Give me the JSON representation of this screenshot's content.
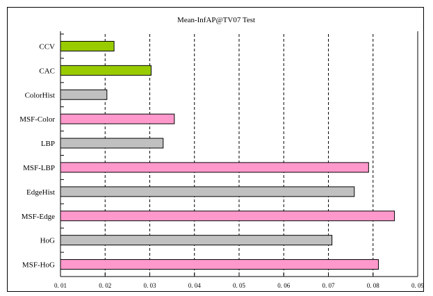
{
  "chart_data": {
    "type": "bar",
    "orientation": "horizontal",
    "title": "Mean-InfAP@TV07 Test",
    "xlabel": "",
    "ylabel": "",
    "xlim": [
      0.01,
      0.09
    ],
    "xticks": [
      "0. 01",
      "0. 02",
      "0. 03",
      "0. 04",
      "0. 05",
      "0. 06",
      "0. 07",
      "0. 08",
      "0. 09"
    ],
    "xtick_values": [
      0.01,
      0.02,
      0.03,
      0.04,
      0.05,
      0.06,
      0.07,
      0.08,
      0.09
    ],
    "grid": "vertical dashed",
    "categories": [
      "CCV",
      "CAC",
      "ColorHist",
      "MSF-Color",
      "LBP",
      "MSF-LBP",
      "EdgeHist",
      "MSF-Edge",
      "HoG",
      "MSF-HoG"
    ],
    "values": [
      0.022,
      0.0303,
      0.0204,
      0.0355,
      0.033,
      0.079,
      0.0758,
      0.0848,
      0.0708,
      0.0812
    ],
    "bar_colors": [
      "#99cc00",
      "#99cc00",
      "#c0c0c0",
      "#ff99cc",
      "#c0c0c0",
      "#ff99cc",
      "#c0c0c0",
      "#ff99cc",
      "#c0c0c0",
      "#ff99cc"
    ]
  }
}
